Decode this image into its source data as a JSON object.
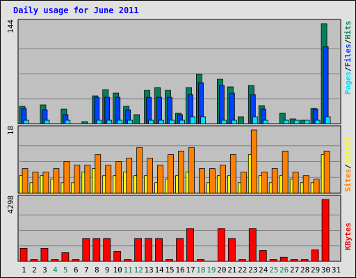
{
  "chart_data": {
    "type": "bar",
    "title": "Daily usage for June 2011",
    "x": [
      "1",
      "2",
      "3",
      "4",
      "5",
      "6",
      "7",
      "8",
      "9",
      "10",
      "11",
      "12",
      "13",
      "14",
      "15",
      "16",
      "17",
      "18",
      "19",
      "20",
      "21",
      "22",
      "23",
      "24",
      "25",
      "26",
      "27",
      "28",
      "29",
      "30",
      "31"
    ],
    "weekend_days": [
      "4",
      "5",
      "11",
      "12",
      "18",
      "19",
      "25",
      "26"
    ],
    "colors": {
      "title": "#0000ff",
      "hits": "#00805c",
      "files": "#0040ff",
      "pages": "#00e0ff",
      "visits": "#ffff00",
      "sites": "#ff8000",
      "kbytes": "#ff0000",
      "weekend_label": "#00805c",
      "weekday_label": "#000000",
      "plot_bg": "#c0c0c0",
      "frame_bg": "#e0e0e0"
    },
    "panels": [
      {
        "id": "hits_files_pages",
        "max_label": "144",
        "ymax": 144,
        "grid": true,
        "legend": [
          "Pages",
          "Files",
          "Hits"
        ],
        "legend_separator": "/",
        "series": [
          {
            "name": "Hits",
            "values": [
              25,
              0,
              27,
              0,
              21,
              0,
              3,
              40,
              49,
              44,
              25,
              13,
              48,
              52,
              48,
              15,
              52,
              71,
              0,
              64,
              53,
              10,
              55,
              26,
              0,
              15,
              7,
              5,
              22,
              144,
              0
            ]
          },
          {
            "name": "Files",
            "values": [
              22,
              0,
              20,
              0,
              13,
              0,
              0,
              38,
              38,
              38,
              20,
              0,
              38,
              38,
              38,
              13,
              42,
              59,
              0,
              55,
              44,
              0,
              42,
              21,
              0,
              0,
              0,
              0,
              21,
              111,
              0
            ]
          },
          {
            "name": "Pages",
            "values": [
              5,
              0,
              5,
              0,
              5,
              0,
              0,
              5,
              5,
              5,
              5,
              0,
              5,
              5,
              5,
              5,
              10,
              10,
              0,
              5,
              5,
              0,
              10,
              5,
              0,
              5,
              5,
              5,
              5,
              10,
              0
            ]
          }
        ]
      },
      {
        "id": "visits_sites",
        "max_label": "18",
        "ymax": 18,
        "grid": true,
        "legend": [
          "Sites",
          "Visits"
        ],
        "legend_separator": "/",
        "series": [
          {
            "name": "Visits",
            "values": [
              5,
              3,
              5,
              4,
              3,
              3,
              6,
              7,
              5,
              5,
              6,
              5,
              5,
              3,
              4,
              5,
              6,
              0,
              3,
              5,
              5,
              3,
              11,
              5,
              3,
              5,
              4,
              3,
              3,
              11,
              0
            ]
          },
          {
            "name": "Sites",
            "values": [
              7,
              6,
              6,
              7,
              9,
              8,
              8,
              11,
              8,
              9,
              10,
              13,
              10,
              8,
              11,
              12,
              13,
              7,
              7,
              8,
              11,
              6,
              18,
              6,
              7,
              12,
              6,
              5,
              4,
              12,
              0
            ]
          }
        ]
      },
      {
        "id": "kbytes",
        "max_label": "4298",
        "ymax": 4298,
        "grid": true,
        "legend": [
          "KBytes"
        ],
        "legend_separator": "",
        "series": [
          {
            "name": "KBytes",
            "values": [
              900,
              120,
              900,
              120,
              600,
              120,
              1580,
              1580,
              1580,
              700,
              120,
              1580,
              1580,
              1580,
              120,
              1580,
              2280,
              120,
              0,
              2280,
              1580,
              120,
              2280,
              750,
              120,
              280,
              120,
              120,
              800,
              4298,
              0
            ]
          }
        ]
      }
    ]
  }
}
